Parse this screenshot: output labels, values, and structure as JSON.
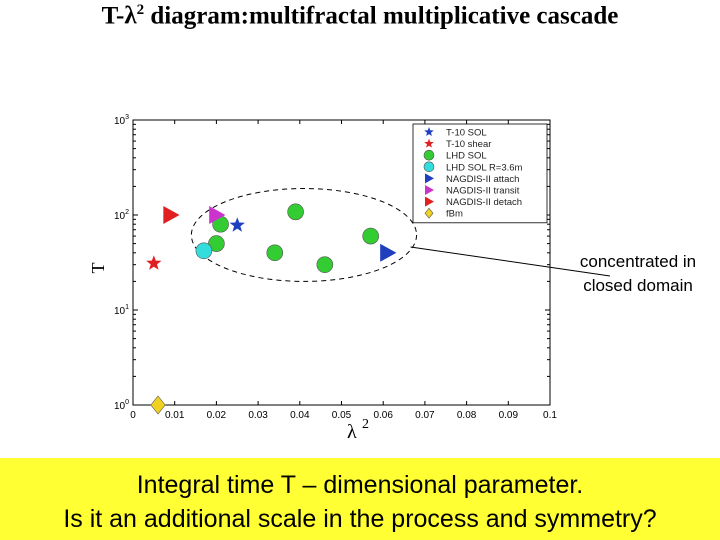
{
  "title": {
    "prefix": "T-",
    "symbol": "λ",
    "sup": "2",
    "rest": " diagram:multifractal multiplicative cascade"
  },
  "annotation": {
    "line1": "concentrated in",
    "line2": "closed domain"
  },
  "banner": {
    "line1": "Integral time T – dimensional parameter.",
    "line2": "Is it an additional scale in the process and symmetry?"
  },
  "chart_data": {
    "type": "scatter",
    "xlabel": "λ 2",
    "ylabel": "T",
    "xlim": [
      0,
      0.1
    ],
    "ylim": [
      1,
      1000
    ],
    "yscale": "log",
    "grid": false,
    "legend_position": "top-right",
    "xticks": [
      "0",
      "0.01",
      "0.02",
      "0.03",
      "0.04",
      "0.05",
      "0.06",
      "0.07",
      "0.08",
      "0.09",
      "0.1"
    ],
    "yticks": [
      {
        "base": "10",
        "exp": "0",
        "value": 1
      },
      {
        "base": "10",
        "exp": "1",
        "value": 10
      },
      {
        "base": "10",
        "exp": "2",
        "value": 100
      },
      {
        "base": "10",
        "exp": "3",
        "value": 1000
      }
    ],
    "series": [
      {
        "name": "T-10 SOL",
        "marker": "star",
        "color": "#1f3fbf",
        "points": [
          [
            0.025,
            78
          ]
        ]
      },
      {
        "name": "T-10 shear",
        "marker": "star",
        "color": "#e02020",
        "points": [
          [
            0.005,
            31
          ]
        ]
      },
      {
        "name": "LHD SOL",
        "marker": "circle",
        "color": "#33cc33",
        "points": [
          [
            0.021,
            80
          ],
          [
            0.039,
            108
          ],
          [
            0.02,
            50
          ],
          [
            0.034,
            40
          ],
          [
            0.046,
            30
          ],
          [
            0.057,
            60
          ]
        ]
      },
      {
        "name": "LHD SOL R=3.6m",
        "marker": "circle",
        "color": "#33dddd",
        "points": [
          [
            0.017,
            42
          ]
        ]
      },
      {
        "name": "NAGDIS-II attach",
        "marker": "triangle-right",
        "color": "#1f3fbf",
        "points": [
          [
            0.061,
            40
          ]
        ]
      },
      {
        "name": "NAGDIS-II transit",
        "marker": "triangle-right",
        "color": "#cc33cc",
        "points": [
          [
            0.02,
            100
          ]
        ]
      },
      {
        "name": "NAGDIS-II detach",
        "marker": "triangle-right",
        "color": "#e02020",
        "points": [
          [
            0.009,
            100
          ]
        ]
      },
      {
        "name": "fBm",
        "marker": "diamond",
        "color": "#f0d020",
        "points": [
          [
            0.006,
            1.0
          ]
        ]
      }
    ],
    "closed_domain": {
      "x": [
        0.014,
        0.068
      ],
      "y": [
        20,
        190
      ]
    }
  }
}
